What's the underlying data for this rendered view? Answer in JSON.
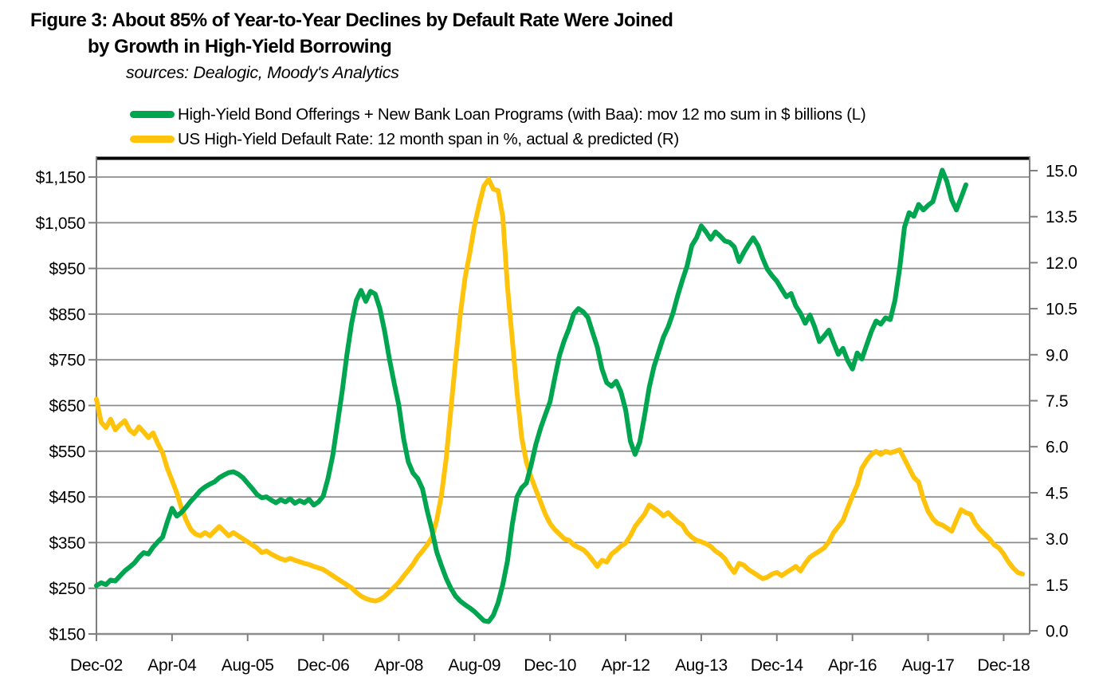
{
  "figure": {
    "title_line1": "Figure 3: About 85% of Year-to-Year Declines by Default Rate Were Joined",
    "title_line2": "by Growth in High-Yield Borrowing",
    "sources": "sources: Dealogic, Moody's Analytics"
  },
  "legend": [
    {
      "label": "High-Yield Bond Offerings + New Bank Loan Programs (with Baa): mov 12 mo sum in $ billions (L)",
      "color": "#00A550"
    },
    {
      "label": "US High-Yield Default Rate: 12 month span in %, actual & predicted  (R)",
      "color": "#FFC30B"
    }
  ],
  "colors": {
    "green_series": "#00A550",
    "yellow_series": "#FFC30B",
    "gridline": "#8c8c8c",
    "axis": "#7f7f7f",
    "top_border": "#000000"
  },
  "chart_data": {
    "type": "line",
    "grid": "horizontal",
    "x_axis": {
      "start_month": "2002-12",
      "interval": "monthly",
      "tick_every_months": 16,
      "tick_labels": [
        "Dec-02",
        "Apr-04",
        "Aug-05",
        "Dec-06",
        "Apr-08",
        "Aug-09",
        "Dec-10",
        "Apr-12",
        "Aug-13",
        "Dec-14",
        "Apr-16",
        "Aug-17",
        "Dec-18"
      ]
    },
    "left_axis": {
      "min": 150,
      "max": 1150,
      "step": 100,
      "tick_labels": [
        "$150",
        "$250",
        "$350",
        "$450",
        "$550",
        "$650",
        "$750",
        "$850",
        "$950",
        "$1,050",
        "$1,150"
      ]
    },
    "right_axis": {
      "min": 0,
      "max": 15,
      "step": 1.5,
      "tick_labels": [
        "0.0",
        "1.5",
        "3.0",
        "4.5",
        "6.0",
        "7.5",
        "9.0",
        "10.5",
        "12.0",
        "13.5",
        "15.0"
      ]
    },
    "series": [
      {
        "name": "US High-Yield Default Rate: 12 month span in %, actual & predicted (R)",
        "axis": "right",
        "color": "#FFC30B",
        "start_month": "2002-12",
        "values": [
          7.55,
          6.8,
          6.62,
          6.9,
          6.55,
          6.72,
          6.85,
          6.55,
          6.42,
          6.65,
          6.48,
          6.3,
          6.45,
          6.1,
          5.8,
          5.3,
          4.9,
          4.5,
          4.0,
          3.6,
          3.3,
          3.15,
          3.1,
          3.2,
          3.1,
          3.25,
          3.4,
          3.25,
          3.1,
          3.2,
          3.1,
          3.0,
          2.9,
          2.8,
          2.7,
          2.55,
          2.6,
          2.5,
          2.42,
          2.35,
          2.3,
          2.36,
          2.3,
          2.25,
          2.2,
          2.16,
          2.1,
          2.05,
          2.0,
          1.9,
          1.8,
          1.7,
          1.6,
          1.5,
          1.4,
          1.25,
          1.13,
          1.05,
          1.0,
          0.97,
          1.02,
          1.12,
          1.27,
          1.42,
          1.58,
          1.78,
          1.97,
          2.17,
          2.42,
          2.6,
          2.8,
          3.05,
          3.6,
          4.4,
          5.6,
          7.2,
          8.8,
          10.3,
          11.5,
          12.3,
          13.2,
          13.9,
          14.5,
          14.72,
          14.4,
          14.35,
          13.5,
          11.2,
          9.5,
          7.8,
          6.3,
          5.5,
          5.0,
          4.6,
          4.2,
          3.8,
          3.5,
          3.3,
          3.15,
          3.0,
          2.95,
          2.8,
          2.72,
          2.65,
          2.5,
          2.3,
          2.1,
          2.3,
          2.24,
          2.5,
          2.62,
          2.76,
          2.86,
          3.1,
          3.4,
          3.6,
          3.8,
          4.1,
          4.0,
          3.88,
          3.75,
          3.85,
          3.7,
          3.55,
          3.45,
          3.2,
          3.05,
          2.95,
          2.9,
          2.84,
          2.75,
          2.6,
          2.5,
          2.35,
          2.1,
          1.9,
          2.2,
          2.14,
          2.0,
          1.9,
          1.8,
          1.7,
          1.75,
          1.85,
          1.9,
          1.8,
          1.9,
          2.0,
          2.1,
          1.95,
          2.2,
          2.4,
          2.5,
          2.6,
          2.7,
          2.9,
          3.2,
          3.4,
          3.6,
          4.0,
          4.4,
          4.75,
          5.3,
          5.55,
          5.75,
          5.85,
          5.75,
          5.85,
          5.8,
          5.85,
          5.9,
          5.6,
          5.3,
          5.0,
          4.85,
          4.3,
          3.9,
          3.65,
          3.5,
          3.45,
          3.35,
          3.25,
          3.6,
          3.95,
          3.85,
          3.8,
          3.5,
          3.3,
          3.15,
          3.0,
          2.8,
          2.7,
          2.5,
          2.25,
          2.05,
          1.9,
          1.85
        ]
      },
      {
        "name": "High-Yield Bond Offerings + New Bank Loan Programs (with Baa): mov 12 mo sum in $ billions (L)",
        "axis": "left",
        "color": "#00A550",
        "start_month": "2002-12",
        "values": [
          256,
          262,
          258,
          268,
          266,
          277,
          288,
          296,
          305,
          318,
          328,
          325,
          340,
          352,
          362,
          395,
          425,
          408,
          416,
          428,
          441,
          452,
          464,
          472,
          478,
          483,
          492,
          498,
          503,
          505,
          500,
          492,
          480,
          468,
          455,
          448,
          450,
          443,
          437,
          444,
          439,
          446,
          436,
          442,
          437,
          445,
          432,
          439,
          452,
          490,
          540,
          610,
          680,
          760,
          830,
          880,
          902,
          878,
          900,
          894,
          862,
          812,
          752,
          700,
          650,
          578,
          527,
          502,
          490,
          468,
          420,
          378,
          330,
          300,
          272,
          250,
          233,
          222,
          214,
          207,
          199,
          189,
          179,
          177,
          191,
          218,
          258,
          310,
          390,
          450,
          470,
          480,
          520,
          565,
          600,
          630,
          658,
          710,
          760,
          792,
          818,
          850,
          862,
          855,
          843,
          810,
          778,
          730,
          700,
          692,
          703,
          680,
          640,
          572,
          543,
          570,
          628,
          690,
          735,
          768,
          800,
          822,
          852,
          890,
          924,
          955,
          1000,
          1017,
          1043,
          1030,
          1014,
          1030,
          1021,
          1010,
          1007,
          997,
          965,
          985,
          1002,
          1017,
          1000,
          972,
          948,
          934,
          922,
          905,
          888,
          895,
          868,
          852,
          830,
          848,
          822,
          790,
          802,
          815,
          788,
          762,
          775,
          748,
          730,
          765,
          752,
          782,
          812,
          835,
          828,
          842,
          838,
          880,
          950,
          1040,
          1072,
          1064,
          1090,
          1078,
          1088,
          1096,
          1130,
          1165,
          1140,
          1100,
          1078,
          1105,
          1133
        ]
      }
    ]
  }
}
